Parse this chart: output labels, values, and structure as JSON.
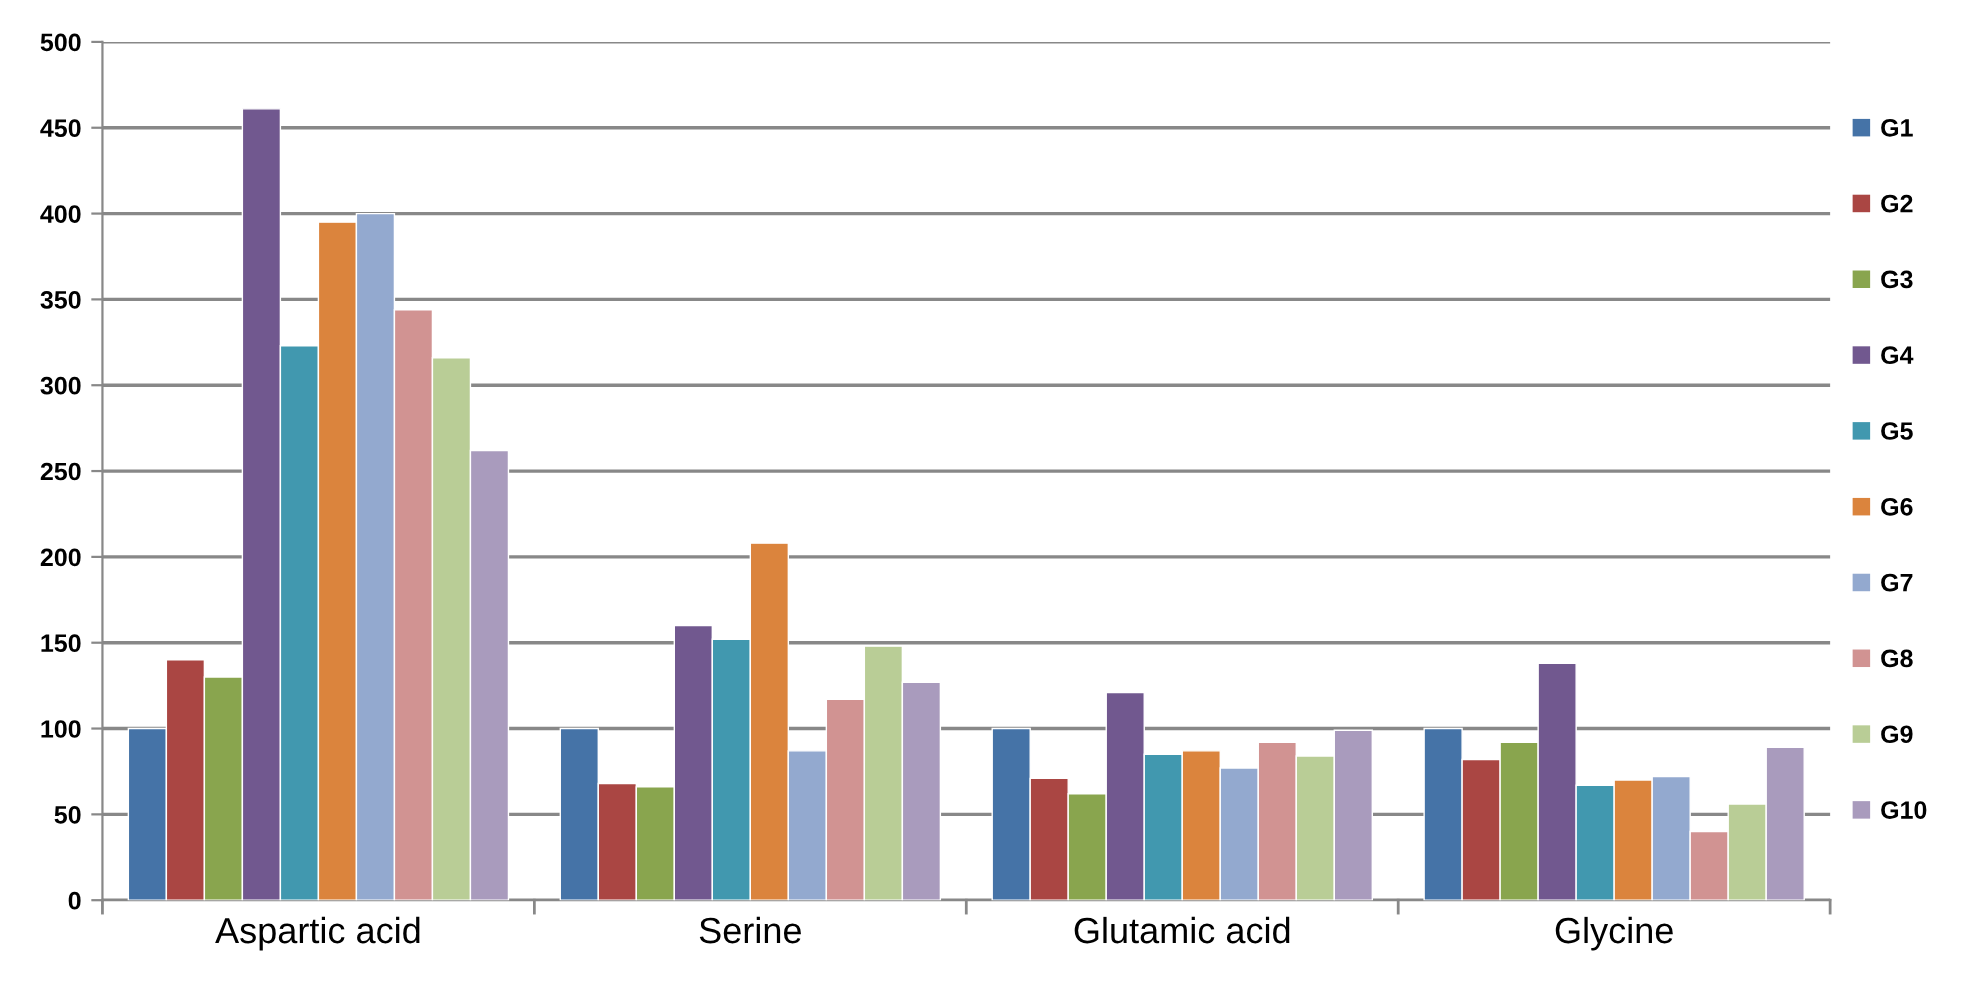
{
  "chart_data": {
    "type": "bar",
    "categories": [
      "Aspartic acid",
      "Serine",
      "Glutamic acid",
      "Glycine"
    ],
    "series": [
      {
        "name": "G1",
        "color": "#4573a7",
        "values": [
          100,
          100,
          100,
          100
        ]
      },
      {
        "name": "G2",
        "color": "#aa4643",
        "values": [
          140,
          68,
          71,
          82
        ]
      },
      {
        "name": "G3",
        "color": "#89a54e",
        "values": [
          130,
          66,
          62,
          92
        ]
      },
      {
        "name": "G4",
        "color": "#71588f",
        "values": [
          461,
          160,
          121,
          138
        ]
      },
      {
        "name": "G5",
        "color": "#4198af",
        "values": [
          323,
          152,
          85,
          67
        ]
      },
      {
        "name": "G6",
        "color": "#db843d",
        "values": [
          395,
          208,
          87,
          70
        ]
      },
      {
        "name": "G7",
        "color": "#93a9cf",
        "values": [
          400,
          87,
          77,
          72
        ]
      },
      {
        "name": "G8",
        "color": "#d19392",
        "values": [
          344,
          117,
          92,
          40
        ]
      },
      {
        "name": "G9",
        "color": "#b9cd96",
        "values": [
          316,
          148,
          84,
          56
        ]
      },
      {
        "name": "G10",
        "color": "#a99bbd",
        "values": [
          262,
          127,
          99,
          89
        ]
      }
    ],
    "ylim": [
      0,
      500
    ],
    "yticks": [
      0,
      50,
      100,
      150,
      200,
      250,
      300,
      350,
      400,
      450,
      500
    ],
    "grid": "y",
    "legend": "right"
  }
}
